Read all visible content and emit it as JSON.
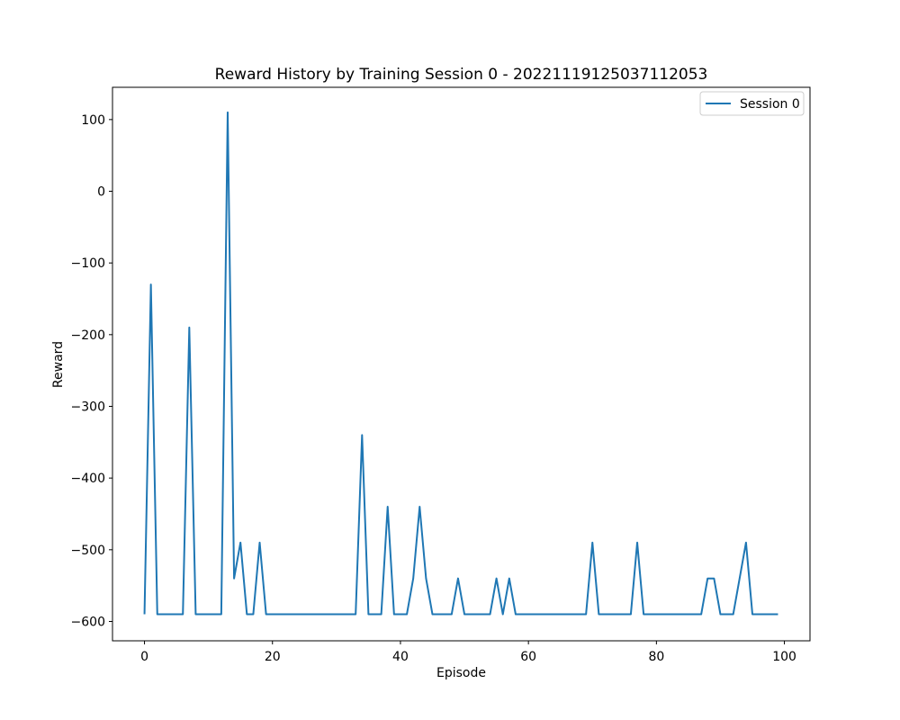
{
  "chart_data": {
    "type": "line",
    "title": "Reward History by Training Session 0 - 20221119125037112053",
    "xlabel": "Episode",
    "ylabel": "Reward",
    "xlim": [
      -5,
      104
    ],
    "ylim": [
      -627,
      145
    ],
    "xticks": [
      0,
      20,
      40,
      60,
      80,
      100
    ],
    "yticks": [
      100,
      0,
      -100,
      -200,
      -300,
      -400,
      -500,
      -600
    ],
    "ytick_labels": [
      "100",
      "0",
      "−100",
      "−200",
      "−300",
      "−400",
      "−500",
      "−600"
    ],
    "grid": false,
    "legend_position": "upper right",
    "series": [
      {
        "name": "Session 0",
        "color": "#1f77b4",
        "x": [
          0,
          1,
          2,
          3,
          4,
          5,
          6,
          7,
          8,
          9,
          10,
          11,
          12,
          13,
          14,
          15,
          16,
          17,
          18,
          19,
          20,
          21,
          22,
          23,
          24,
          25,
          26,
          27,
          28,
          29,
          30,
          31,
          32,
          33,
          34,
          35,
          36,
          37,
          38,
          39,
          40,
          41,
          42,
          43,
          44,
          45,
          46,
          47,
          48,
          49,
          50,
          51,
          52,
          53,
          54,
          55,
          56,
          57,
          58,
          59,
          60,
          61,
          62,
          63,
          64,
          65,
          66,
          67,
          68,
          69,
          70,
          71,
          72,
          73,
          74,
          75,
          76,
          77,
          78,
          79,
          80,
          81,
          82,
          83,
          84,
          85,
          86,
          87,
          88,
          89,
          90,
          91,
          92,
          93,
          94,
          95,
          96,
          97,
          98,
          99
        ],
        "y": [
          -590,
          -130,
          -590,
          -590,
          -590,
          -590,
          -590,
          -190,
          -590,
          -590,
          -590,
          -590,
          -590,
          110,
          -540,
          -490,
          -590,
          -590,
          -490,
          -590,
          -590,
          -590,
          -590,
          -590,
          -590,
          -590,
          -590,
          -590,
          -590,
          -590,
          -590,
          -590,
          -590,
          -590,
          -340,
          -590,
          -590,
          -590,
          -440,
          -590,
          -590,
          -590,
          -540,
          -440,
          -540,
          -590,
          -590,
          -590,
          -590,
          -540,
          -590,
          -590,
          -590,
          -590,
          -590,
          -540,
          -590,
          -540,
          -590,
          -590,
          -590,
          -590,
          -590,
          -590,
          -590,
          -590,
          -590,
          -590,
          -590,
          -590,
          -490,
          -590,
          -590,
          -590,
          -590,
          -590,
          -590,
          -490,
          -590,
          -590,
          -590,
          -590,
          -590,
          -590,
          -590,
          -590,
          -590,
          -590,
          -540,
          -540,
          -590,
          -590,
          -590,
          -540,
          -490,
          -590,
          -590,
          -590,
          -590,
          -590
        ]
      }
    ]
  }
}
